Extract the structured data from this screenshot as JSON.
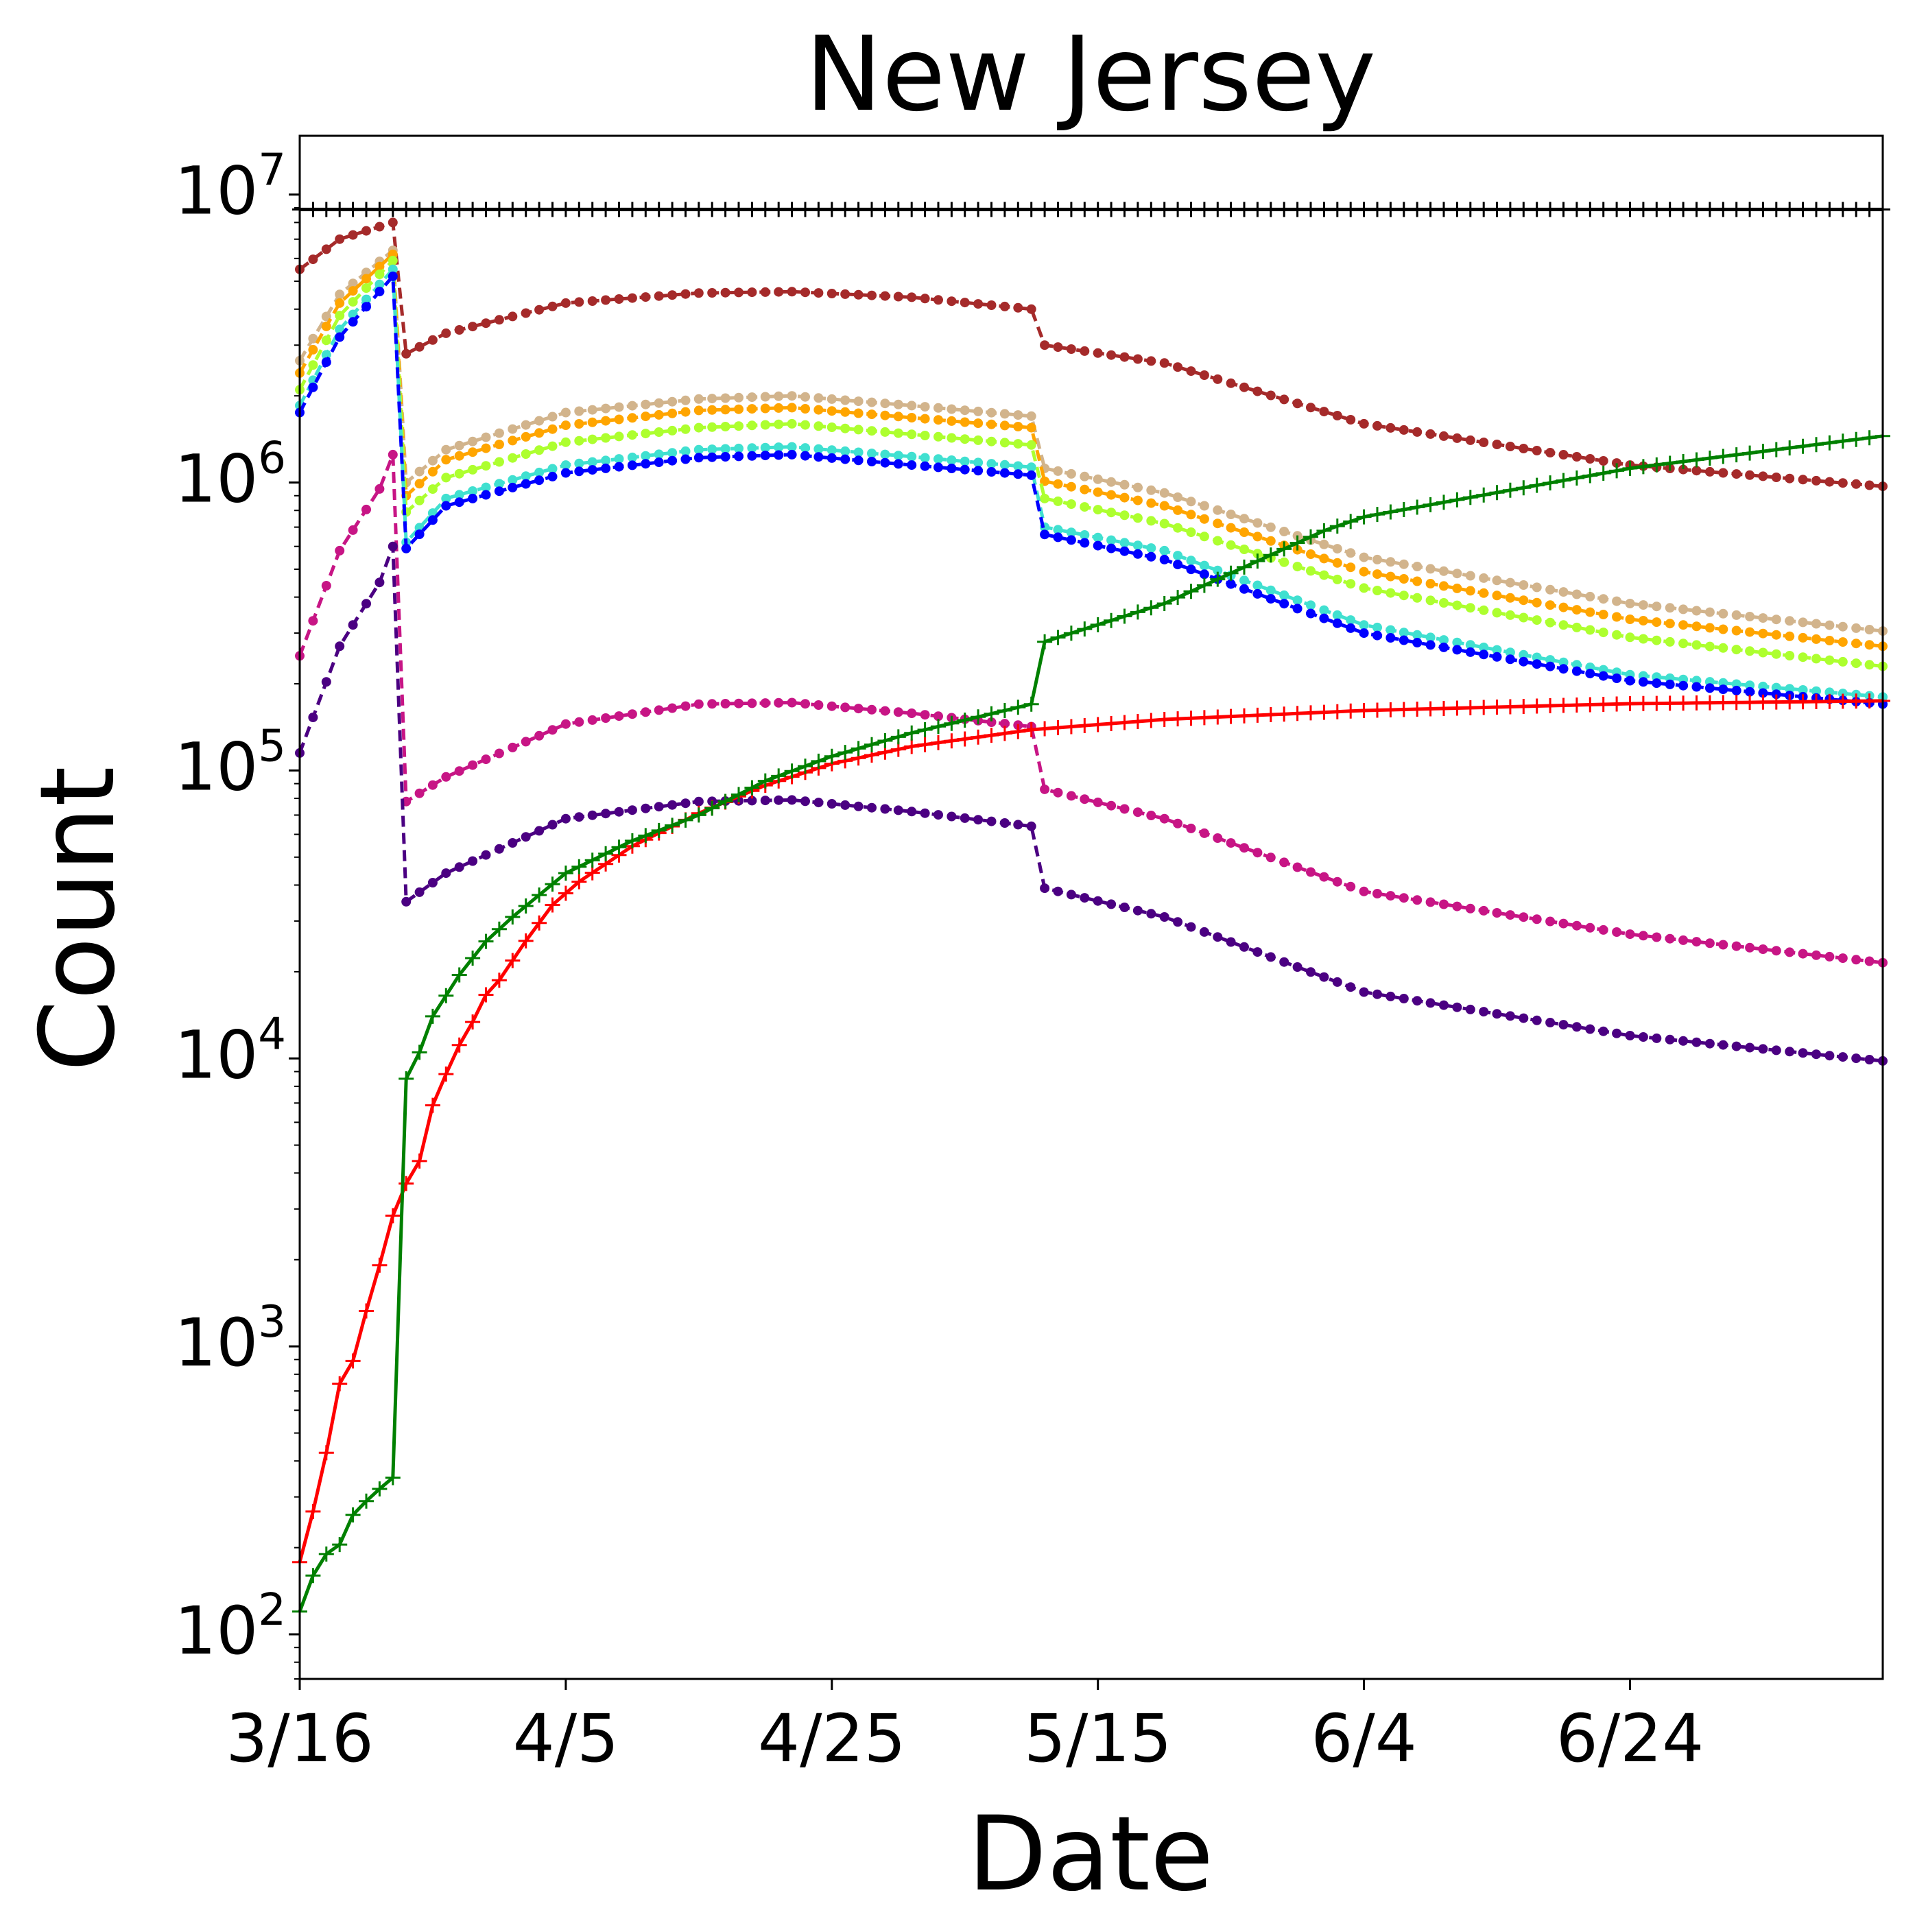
{
  "chart_data": {
    "type": "line",
    "title": "New Jersey",
    "xlabel": "Date",
    "ylabel": "Count",
    "yscale": "log",
    "ylim": [
      70,
      16000000
    ],
    "xlim": [
      "2020-03-16",
      "2020-07-13"
    ],
    "xticks": [
      {
        "date": "2020-03-16",
        "label": "3/16"
      },
      {
        "date": "2020-04-05",
        "label": "4/5"
      },
      {
        "date": "2020-04-25",
        "label": "4/25"
      },
      {
        "date": "2020-05-15",
        "label": "5/15"
      },
      {
        "date": "2020-06-04",
        "label": "6/4"
      },
      {
        "date": "2020-06-24",
        "label": "6/24"
      }
    ],
    "yticks": [
      {
        "value": 100,
        "base": "10",
        "exp": "2"
      },
      {
        "value": 1000,
        "base": "10",
        "exp": "3"
      },
      {
        "value": 10000,
        "base": "10",
        "exp": "4"
      },
      {
        "value": 100000,
        "base": "10",
        "exp": "5"
      },
      {
        "value": 1000000,
        "base": "10",
        "exp": "6"
      },
      {
        "value": 10000000,
        "base": "10",
        "exp": "7"
      }
    ],
    "grid": false,
    "legend": "none",
    "series": [
      {
        "color": "#000000",
        "style": "solid",
        "marker": "plus",
        "points": [
          [
            "2020-03-16",
            8880000
          ],
          [
            "2020-07-13",
            8880000
          ]
        ]
      },
      {
        "color": "#a52a2a",
        "style": "dashed",
        "marker": "dot",
        "points": [
          [
            "2020-03-16",
            5500000
          ],
          [
            "2020-03-19",
            7000000
          ],
          [
            "2020-03-23",
            8000000
          ],
          [
            "2020-03-24",
            2800000
          ],
          [
            "2020-03-27",
            3300000
          ],
          [
            "2020-04-05",
            4200000
          ],
          [
            "2020-04-15",
            4550000
          ],
          [
            "2020-04-22",
            4600000
          ],
          [
            "2020-05-01",
            4400000
          ],
          [
            "2020-05-10",
            4000000
          ],
          [
            "2020-05-11",
            3000000
          ],
          [
            "2020-05-20",
            2600000
          ],
          [
            "2020-06-04",
            1600000
          ],
          [
            "2020-06-24",
            1150000
          ],
          [
            "2020-07-13",
            970000
          ]
        ]
      },
      {
        "color": "#d2b48c",
        "style": "dashed",
        "marker": "dot",
        "points": [
          [
            "2020-03-16",
            2650000
          ],
          [
            "2020-03-19",
            4500000
          ],
          [
            "2020-03-23",
            6400000
          ],
          [
            "2020-03-24",
            1000000
          ],
          [
            "2020-03-27",
            1300000
          ],
          [
            "2020-04-05",
            1750000
          ],
          [
            "2020-04-15",
            1950000
          ],
          [
            "2020-04-22",
            2000000
          ],
          [
            "2020-05-01",
            1850000
          ],
          [
            "2020-05-10",
            1700000
          ],
          [
            "2020-05-11",
            1120000
          ],
          [
            "2020-05-20",
            920000
          ],
          [
            "2020-06-04",
            550000
          ],
          [
            "2020-06-24",
            380000
          ],
          [
            "2020-07-13",
            305000
          ]
        ]
      },
      {
        "color": "#ffa500",
        "style": "dashed",
        "marker": "dot",
        "points": [
          [
            "2020-03-16",
            2400000
          ],
          [
            "2020-03-19",
            4200000
          ],
          [
            "2020-03-23",
            6200000
          ],
          [
            "2020-03-24",
            900000
          ],
          [
            "2020-03-27",
            1200000
          ],
          [
            "2020-04-05",
            1580000
          ],
          [
            "2020-04-15",
            1780000
          ],
          [
            "2020-04-22",
            1820000
          ],
          [
            "2020-05-01",
            1680000
          ],
          [
            "2020-05-10",
            1550000
          ],
          [
            "2020-05-11",
            1010000
          ],
          [
            "2020-05-20",
            830000
          ],
          [
            "2020-06-04",
            490000
          ],
          [
            "2020-06-24",
            335000
          ],
          [
            "2020-07-13",
            270000
          ]
        ]
      },
      {
        "color": "#adff2f",
        "style": "dashed",
        "marker": "dot",
        "points": [
          [
            "2020-03-16",
            2100000
          ],
          [
            "2020-03-19",
            3800000
          ],
          [
            "2020-03-23",
            5900000
          ],
          [
            "2020-03-24",
            790000
          ],
          [
            "2020-03-27",
            1040000
          ],
          [
            "2020-04-05",
            1380000
          ],
          [
            "2020-04-15",
            1550000
          ],
          [
            "2020-04-22",
            1600000
          ],
          [
            "2020-05-01",
            1470000
          ],
          [
            "2020-05-10",
            1350000
          ],
          [
            "2020-05-11",
            880000
          ],
          [
            "2020-05-20",
            720000
          ],
          [
            "2020-06-04",
            430000
          ],
          [
            "2020-06-24",
            290000
          ],
          [
            "2020-07-13",
            230000
          ]
        ]
      },
      {
        "color": "#40e0d0",
        "style": "dashed",
        "marker": "dot",
        "points": [
          [
            "2020-03-16",
            1850000
          ],
          [
            "2020-03-19",
            3400000
          ],
          [
            "2020-03-23",
            5500000
          ],
          [
            "2020-03-24",
            620000
          ],
          [
            "2020-03-27",
            880000
          ],
          [
            "2020-04-05",
            1150000
          ],
          [
            "2020-04-15",
            1300000
          ],
          [
            "2020-04-22",
            1330000
          ],
          [
            "2020-05-01",
            1230000
          ],
          [
            "2020-05-10",
            1130000
          ],
          [
            "2020-05-11",
            700000
          ],
          [
            "2020-05-20",
            580000
          ],
          [
            "2020-06-04",
            320000
          ],
          [
            "2020-06-24",
            215000
          ],
          [
            "2020-07-13",
            180000
          ]
        ]
      },
      {
        "color": "#0000ff",
        "style": "dashed",
        "marker": "dot",
        "points": [
          [
            "2020-03-16",
            1750000
          ],
          [
            "2020-03-19",
            3200000
          ],
          [
            "2020-03-23",
            5200000
          ],
          [
            "2020-03-24",
            590000
          ],
          [
            "2020-03-27",
            830000
          ],
          [
            "2020-04-05",
            1080000
          ],
          [
            "2020-04-15",
            1220000
          ],
          [
            "2020-04-22",
            1250000
          ],
          [
            "2020-05-01",
            1150000
          ],
          [
            "2020-05-10",
            1060000
          ],
          [
            "2020-05-11",
            660000
          ],
          [
            "2020-05-20",
            540000
          ],
          [
            "2020-06-04",
            300000
          ],
          [
            "2020-06-24",
            205000
          ],
          [
            "2020-07-13",
            170000
          ]
        ]
      },
      {
        "color": "#c71585",
        "style": "dashed",
        "marker": "dot",
        "points": [
          [
            "2020-03-16",
            250000
          ],
          [
            "2020-03-19",
            580000
          ],
          [
            "2020-03-22",
            950000
          ],
          [
            "2020-03-23",
            1250000
          ],
          [
            "2020-03-24",
            78000
          ],
          [
            "2020-03-27",
            95000
          ],
          [
            "2020-04-05",
            145000
          ],
          [
            "2020-04-15",
            170000
          ],
          [
            "2020-04-22",
            172000
          ],
          [
            "2020-05-01",
            158000
          ],
          [
            "2020-05-10",
            142000
          ],
          [
            "2020-05-11",
            86000
          ],
          [
            "2020-05-20",
            68000
          ],
          [
            "2020-06-04",
            38000
          ],
          [
            "2020-06-24",
            27000
          ],
          [
            "2020-07-13",
            21500
          ]
        ]
      },
      {
        "color": "#4b0082",
        "style": "dashed",
        "marker": "dot",
        "points": [
          [
            "2020-03-16",
            115000
          ],
          [
            "2020-03-19",
            270000
          ],
          [
            "2020-03-22",
            450000
          ],
          [
            "2020-03-23",
            600000
          ],
          [
            "2020-03-24",
            35000
          ],
          [
            "2020-03-27",
            44000
          ],
          [
            "2020-04-05",
            68000
          ],
          [
            "2020-04-15",
            78000
          ],
          [
            "2020-04-22",
            79000
          ],
          [
            "2020-05-01",
            72000
          ],
          [
            "2020-05-10",
            64000
          ],
          [
            "2020-05-11",
            39000
          ],
          [
            "2020-05-20",
            31000
          ],
          [
            "2020-06-04",
            17000
          ],
          [
            "2020-06-24",
            12000
          ],
          [
            "2020-07-13",
            9800
          ]
        ]
      },
      {
        "color": "#ff0000",
        "style": "solid",
        "marker": "plus",
        "points": [
          [
            "2020-03-16",
            178
          ],
          [
            "2020-03-17",
            267
          ],
          [
            "2020-03-18",
            427
          ],
          [
            "2020-03-19",
            742
          ],
          [
            "2020-03-20",
            890
          ],
          [
            "2020-03-21",
            1327
          ],
          [
            "2020-03-22",
            1914
          ],
          [
            "2020-03-23",
            2844
          ],
          [
            "2020-03-24",
            3675
          ],
          [
            "2020-03-25",
            4402
          ],
          [
            "2020-03-26",
            6876
          ],
          [
            "2020-03-27",
            8825
          ],
          [
            "2020-03-28",
            11124
          ],
          [
            "2020-03-29",
            13386
          ],
          [
            "2020-03-30",
            16636
          ],
          [
            "2020-03-31",
            18696
          ],
          [
            "2020-04-02",
            25590
          ],
          [
            "2020-04-04",
            34124
          ],
          [
            "2020-04-06",
            41090
          ],
          [
            "2020-04-10",
            54588
          ],
          [
            "2020-04-15",
            71030
          ],
          [
            "2020-04-20",
            88806
          ],
          [
            "2020-04-25",
            105498
          ],
          [
            "2020-05-01",
            121190
          ],
          [
            "2020-05-10",
            138532
          ],
          [
            "2020-05-20",
            150399
          ],
          [
            "2020-06-04",
            161545
          ],
          [
            "2020-06-24",
            170584
          ],
          [
            "2020-07-13",
            174501
          ]
        ]
      },
      {
        "color": "#008000",
        "style": "solid",
        "marker": "plus",
        "points": [
          [
            "2020-03-16",
            120
          ],
          [
            "2020-03-17",
            160
          ],
          [
            "2020-03-18",
            190
          ],
          [
            "2020-03-19",
            205
          ],
          [
            "2020-03-20",
            260
          ],
          [
            "2020-03-21",
            290
          ],
          [
            "2020-03-22",
            320
          ],
          [
            "2020-03-23",
            350
          ],
          [
            "2020-03-24",
            8500
          ],
          [
            "2020-03-25",
            10500
          ],
          [
            "2020-03-26",
            14000
          ],
          [
            "2020-03-28",
            19500
          ],
          [
            "2020-03-30",
            25500
          ],
          [
            "2020-04-01",
            31000
          ],
          [
            "2020-04-05",
            44000
          ],
          [
            "2020-04-10",
            57000
          ],
          [
            "2020-04-15",
            70000
          ],
          [
            "2020-04-20",
            92000
          ],
          [
            "2020-04-25",
            112000
          ],
          [
            "2020-05-01",
            135000
          ],
          [
            "2020-05-10",
            170000
          ],
          [
            "2020-05-11",
            280000
          ],
          [
            "2020-05-20",
            380000
          ],
          [
            "2020-06-01",
            680000
          ],
          [
            "2020-06-04",
            760000
          ],
          [
            "2020-06-24",
            1120000
          ],
          [
            "2020-07-13",
            1450000
          ]
        ]
      }
    ]
  }
}
